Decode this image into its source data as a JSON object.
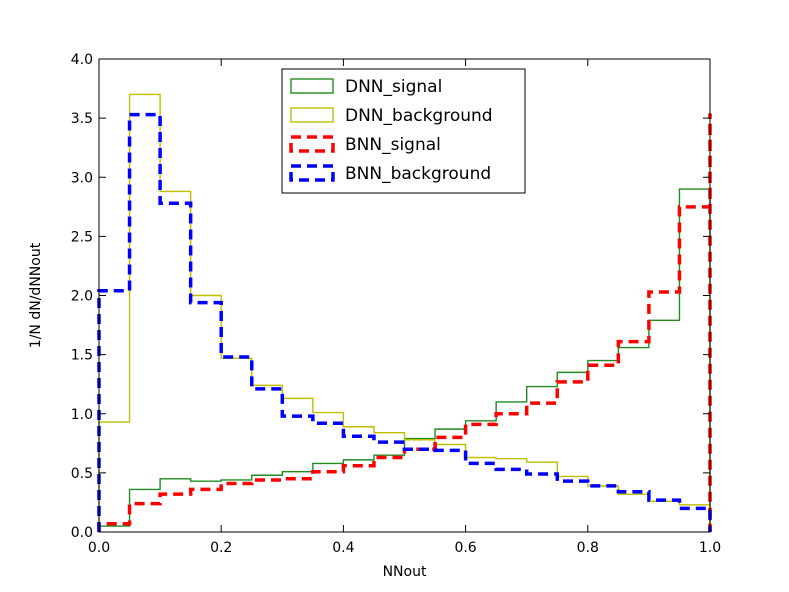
{
  "chart_data": {
    "type": "line",
    "drawstyle": "steps",
    "xlabel": "NNout",
    "ylabel": "1/N dN/dNNout",
    "xlim": [
      0.0,
      1.0
    ],
    "ylim": [
      0.0,
      4.0
    ],
    "xticks": [
      "0.0",
      "0.2",
      "0.4",
      "0.6",
      "0.8",
      "1.0"
    ],
    "yticks": [
      "0.0",
      "0.5",
      "1.0",
      "1.5",
      "2.0",
      "2.5",
      "3.0",
      "3.5",
      "4.0"
    ],
    "legend_position": "top-center",
    "grid": false,
    "series": [
      {
        "name": "DNN_signal",
        "color": "#228b22",
        "style": "solid",
        "bin_edges": [
          0.0,
          0.05,
          0.1,
          0.15,
          0.2,
          0.25,
          0.3,
          0.35,
          0.4,
          0.45,
          0.5,
          0.55,
          0.6,
          0.65,
          0.7,
          0.75,
          0.8,
          0.85,
          0.9,
          0.95,
          1.0
        ],
        "values": [
          0.05,
          0.36,
          0.45,
          0.43,
          0.44,
          0.48,
          0.51,
          0.58,
          0.61,
          0.65,
          0.79,
          0.87,
          0.94,
          1.1,
          1.23,
          1.35,
          1.45,
          1.56,
          1.79,
          2.9,
          2.55
        ]
      },
      {
        "name": "DNN_background",
        "color": "#bfbf00",
        "style": "solid",
        "bin_edges": [
          0.0,
          0.05,
          0.1,
          0.15,
          0.2,
          0.25,
          0.3,
          0.35,
          0.4,
          0.45,
          0.5,
          0.55,
          0.6,
          0.65,
          0.7,
          0.75,
          0.8,
          0.85,
          0.9,
          0.95,
          1.0
        ],
        "values": [
          0.93,
          3.7,
          2.88,
          2.0,
          1.47,
          1.24,
          1.13,
          1.01,
          0.89,
          0.84,
          0.78,
          0.74,
          0.63,
          0.62,
          0.59,
          0.47,
          0.39,
          0.32,
          0.26,
          0.23,
          0.1
        ]
      },
      {
        "name": "BNN_signal",
        "color": "#ff0000",
        "style": "dashed",
        "bin_edges": [
          0.0,
          0.05,
          0.1,
          0.15,
          0.2,
          0.25,
          0.3,
          0.35,
          0.4,
          0.45,
          0.5,
          0.55,
          0.6,
          0.65,
          0.7,
          0.75,
          0.8,
          0.85,
          0.9,
          0.95,
          1.0
        ],
        "values": [
          0.07,
          0.24,
          0.32,
          0.36,
          0.41,
          0.44,
          0.45,
          0.51,
          0.56,
          0.63,
          0.7,
          0.8,
          0.91,
          1.0,
          1.09,
          1.27,
          1.41,
          1.61,
          2.03,
          2.75,
          3.54
        ]
      },
      {
        "name": "BNN_background",
        "color": "#0000ff",
        "style": "dashed",
        "bin_edges": [
          0.0,
          0.05,
          0.1,
          0.15,
          0.2,
          0.25,
          0.3,
          0.35,
          0.4,
          0.45,
          0.5,
          0.55,
          0.6,
          0.65,
          0.7,
          0.75,
          0.8,
          0.85,
          0.9,
          0.95,
          1.0
        ],
        "values": [
          2.04,
          3.53,
          2.78,
          1.94,
          1.48,
          1.21,
          0.98,
          0.92,
          0.81,
          0.76,
          0.7,
          0.69,
          0.58,
          0.53,
          0.49,
          0.43,
          0.39,
          0.34,
          0.27,
          0.2,
          0.1
        ]
      }
    ]
  }
}
